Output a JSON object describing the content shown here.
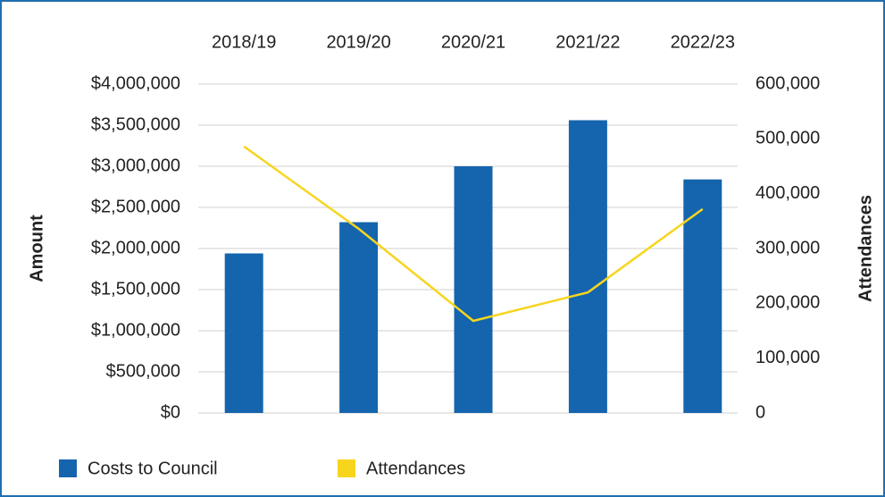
{
  "chart_data": {
    "type": "bar",
    "categories": [
      "2018/19",
      "2019/20",
      "2020/21",
      "2021/22",
      "2022/23"
    ],
    "series": [
      {
        "name": "Costs to Council",
        "color": "#1565ae",
        "type": "bar",
        "values": [
          1940000,
          2320000,
          3000000,
          3560000,
          2840000
        ]
      },
      {
        "name": "Attendances",
        "color": "#f7d51d",
        "type": "line",
        "axis": "y2",
        "values": [
          486000,
          336000,
          168000,
          220000,
          372000
        ]
      }
    ],
    "y_label": "Amount",
    "y2_label": "Attendances",
    "ylim": [
      0,
      4000000
    ],
    "yticks": [
      {
        "value": 0,
        "label": "$0"
      },
      {
        "value": 500000,
        "label": "$500,000"
      },
      {
        "value": 1000000,
        "label": "$1,000,000"
      },
      {
        "value": 1500000,
        "label": "$1,500,000"
      },
      {
        "value": 2000000,
        "label": "$2,000,000"
      },
      {
        "value": 2500000,
        "label": "$2,500,000"
      },
      {
        "value": 3000000,
        "label": "$3,000,000"
      },
      {
        "value": 3500000,
        "label": "$3,500,000"
      },
      {
        "value": 4000000,
        "label": "$4,000,000"
      }
    ],
    "y2lim": [
      0,
      600000
    ],
    "y2ticks": [
      0,
      {
        "value": 100000,
        "label": "100,000"
      },
      {
        "value": 200000,
        "label": "200,000"
      },
      {
        "value": 300000,
        "label": "300,000"
      },
      {
        "value": 400000,
        "label": "400,000"
      },
      {
        "value": 500000,
        "label": "500,000"
      },
      {
        "value": 600000,
        "label": "600,000"
      }
    ],
    "grid": true,
    "legend": "bottom-left"
  }
}
